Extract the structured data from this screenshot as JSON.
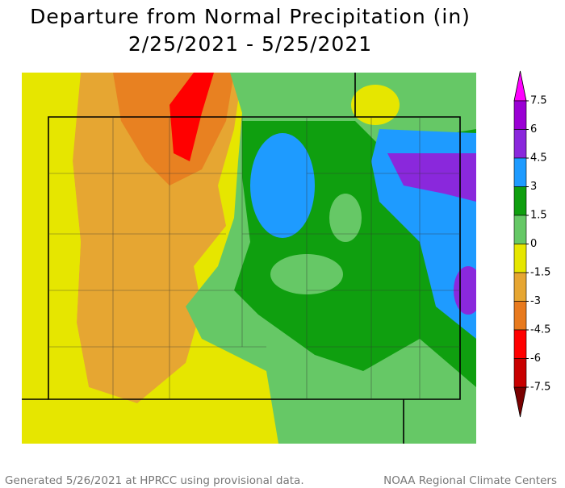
{
  "title": [
    "Departure from Normal Precipitation (in)",
    "2/25/2021 - 5/25/2021"
  ],
  "legend": {
    "ticks": [
      7.5,
      6,
      4.5,
      3,
      1.5,
      0,
      -1.5,
      -3,
      -4.5,
      -6,
      -7.5
    ],
    "colors": [
      "#ff00ff",
      "#9a00d4",
      "#8a28dc",
      "#1e9bff",
      "#0f9f0f",
      "#66c866",
      "#e6e600",
      "#e6a632",
      "#e87a1e",
      "#ff0000",
      "#c80000",
      "#7a0000"
    ]
  },
  "footer": {
    "left": "Generated 5/26/2021 at HPRCC using provisional data.",
    "right": "NOAA Regional Climate Centers"
  }
}
